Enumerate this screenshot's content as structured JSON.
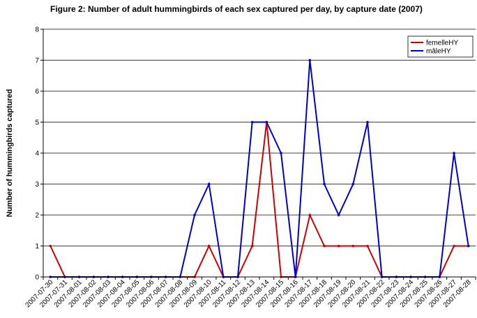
{
  "chart_data": {
    "type": "line",
    "title": "Figure 2: Number of adult hummingbirds of each sex captured per day, by capture date (2007)",
    "y_label": "Number of hummingbirds captured",
    "categories": [
      "2007-07-30",
      "2007-07-31",
      "2007-08-01",
      "2007-08-02",
      "2007-08-03",
      "2007-08-04",
      "2007-08-05",
      "2007-08-06",
      "2007-08-07",
      "2007-08-08",
      "2007-08-09",
      "2007-08-10",
      "2007-08-11",
      "2007-08-12",
      "2007-08-13",
      "2007-08-14",
      "2007-08-15",
      "2007-08-16",
      "2007-08-17",
      "2007-08-18",
      "2007-08-19",
      "2007-08-20",
      "2007-08-21",
      "2007-08-22",
      "2007-08-23",
      "2007-08-24",
      "2007-08-25",
      "2007-08-26",
      "2007-08-27",
      "2007-08-28"
    ],
    "series": [
      {
        "name": "femelleHY",
        "color": "#cc0000",
        "values": [
          1,
          0,
          0,
          0,
          0,
          0,
          0,
          0,
          0,
          0,
          0,
          1,
          0,
          0,
          1,
          5,
          0,
          0,
          2,
          1,
          1,
          1,
          1,
          0,
          0,
          0,
          0,
          0,
          1,
          1
        ]
      },
      {
        "name": "mâleHY",
        "color": "#0000cc",
        "values": [
          0,
          0,
          0,
          0,
          0,
          0,
          0,
          0,
          0,
          0,
          2,
          3,
          0,
          0,
          5,
          5,
          4,
          0,
          7,
          3,
          2,
          3,
          5,
          0,
          0,
          0,
          0,
          0,
          4,
          1
        ]
      }
    ],
    "ylim": [
      0,
      8
    ],
    "yticks": [
      0,
      1,
      2,
      3,
      4,
      5,
      6,
      7,
      8
    ],
    "grid": true,
    "legend": "top-right"
  }
}
